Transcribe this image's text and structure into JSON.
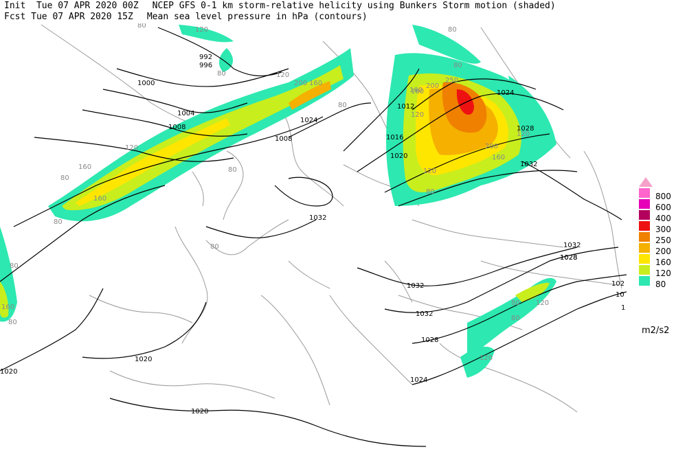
{
  "header": {
    "init": "Init  Tue 07 APR 2020 00Z",
    "fcst": "Fcst Tue 07 APR 2020 15Z",
    "line1": "NCEP GFS 0-1 km storm-relative helicity using Bunkers Storm motion (shaded)",
    "line2": "Mean sea level pressure in hPa (contours)"
  },
  "legend": {
    "units": "m2/s2",
    "levels": [
      {
        "label": "800",
        "color": "#ff66cc"
      },
      {
        "label": "600",
        "color": "#e600b8"
      },
      {
        "label": "400",
        "color": "#b3005c"
      },
      {
        "label": "300",
        "color": "#ee1111"
      },
      {
        "label": "250",
        "color": "#f08000"
      },
      {
        "label": "200",
        "color": "#f5b000"
      },
      {
        "label": "160",
        "color": "#ffe600"
      },
      {
        "label": "120",
        "color": "#c8ee1e"
      },
      {
        "label": "80",
        "color": "#2de8b0"
      }
    ],
    "arrow_color": "#f5a0c8"
  },
  "contour_labels": [
    "992",
    "996",
    "1000",
    "1004",
    "1008",
    "1012",
    "1016",
    "1020",
    "1024",
    "1028",
    "1032"
  ],
  "map_labels": {
    "isobars": [
      "992",
      "996",
      "1000",
      "1004",
      "1008",
      "1008",
      "1012",
      "1016",
      "1020",
      "1024",
      "1024",
      "1028",
      "1028",
      "1032",
      "1032",
      "1032",
      "1032",
      "1032",
      "1028",
      "1028",
      "1024",
      "1020",
      "1020",
      "1020",
      "102",
      "10",
      "1"
    ],
    "helicity": [
      "120",
      "80",
      "120",
      "200",
      "160",
      "80",
      "160",
      "160",
      "80",
      "120",
      "80",
      "80",
      "80",
      "160",
      "200",
      "250",
      "160",
      "120",
      "200",
      "160",
      "120",
      "120",
      "80",
      "80",
      "80",
      "80",
      "120",
      "80",
      "120",
      "80",
      "160",
      "80",
      "80"
    ]
  },
  "colors": {
    "coast": "#9a9a9a",
    "isobar": "#000000",
    "background": "#ffffff"
  }
}
